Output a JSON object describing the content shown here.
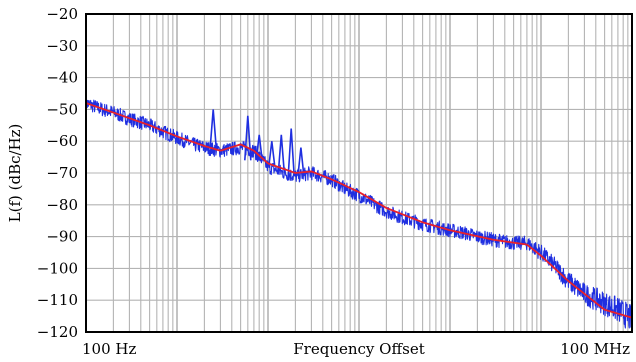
{
  "chart_data": {
    "type": "line",
    "xscale": "log",
    "xlim_hz": [
      100,
      100000000
    ],
    "ylim": [
      -120,
      -20
    ],
    "yticks": [
      -20,
      -30,
      -40,
      -50,
      -60,
      -70,
      -80,
      -90,
      -100,
      -110,
      -120
    ],
    "ytick_labels": [
      "−20",
      "−30",
      "−40",
      "−50",
      "−60",
      "−70",
      "−80",
      "−90",
      "−100",
      "−110",
      "−120"
    ],
    "xtick_labels": [
      {
        "x_hz": 100,
        "label": "100  Hz"
      },
      {
        "x_hz": 100000000,
        "label": "100  MHz"
      }
    ],
    "xlabel": "Frequency  Offset",
    "ylabel": "L(f)  (dBc/Hz)",
    "grid": true,
    "colors": {
      "measured": "#1f2fe0",
      "fit": "#e8202a",
      "grid": "#b4b4b4",
      "frame": "#000000"
    },
    "series": [
      {
        "role": "measured",
        "x_hz": [
          100,
          150,
          200,
          300,
          500,
          700,
          1000,
          1500,
          2000,
          3000,
          5000,
          7000,
          10000,
          15000,
          20000,
          30000,
          50000,
          70000,
          100000,
          150000,
          200000,
          300000,
          500000,
          700000,
          1000000,
          1500000,
          2000000,
          3000000,
          5000000,
          7000000,
          10000000,
          15000000,
          20000000,
          30000000,
          50000000,
          70000000,
          100000000
        ],
        "values": [
          -48,
          -50,
          -51,
          -53,
          -55,
          -57,
          -59,
          -61,
          -62,
          -63,
          -62,
          -63,
          -68,
          -70,
          -71,
          -70,
          -72,
          -75,
          -77,
          -80,
          -82,
          -84,
          -86,
          -87,
          -88,
          -89,
          -90,
          -91,
          -92,
          -92,
          -95,
          -100,
          -104,
          -108,
          -111,
          -113,
          -116
        ]
      },
      {
        "role": "fit",
        "x_hz": [
          100,
          200,
          500,
          1000,
          2000,
          3000,
          5000,
          7000,
          10000,
          20000,
          30000,
          50000,
          100000,
          200000,
          500000,
          1000000,
          3000000,
          7000000,
          10000000,
          20000000,
          50000000,
          100000000
        ],
        "values": [
          -48,
          -51,
          -55,
          -58.5,
          -61.5,
          -63,
          -61,
          -63,
          -67,
          -70,
          -69.5,
          -72,
          -76,
          -81,
          -85.5,
          -88,
          -91,
          -92.5,
          -96,
          -104,
          -113,
          -115.5
        ]
      }
    ],
    "spurs": [
      {
        "x_hz": 2500,
        "values": [
          -50,
          -62,
          -62
        ]
      },
      {
        "x_hz": 6000,
        "values": [
          -52,
          -66,
          -66
        ]
      },
      {
        "x_hz": 8000,
        "values": [
          -58,
          -66,
          -66
        ]
      },
      {
        "x_hz": 11000,
        "values": [
          -60,
          -68,
          -68
        ]
      },
      {
        "x_hz": 14000,
        "values": [
          -58,
          -70,
          -70
        ]
      },
      {
        "x_hz": 18000,
        "values": [
          -56,
          -71,
          -71
        ]
      },
      {
        "x_hz": 23000,
        "values": [
          -62,
          -71,
          -71
        ]
      }
    ]
  }
}
